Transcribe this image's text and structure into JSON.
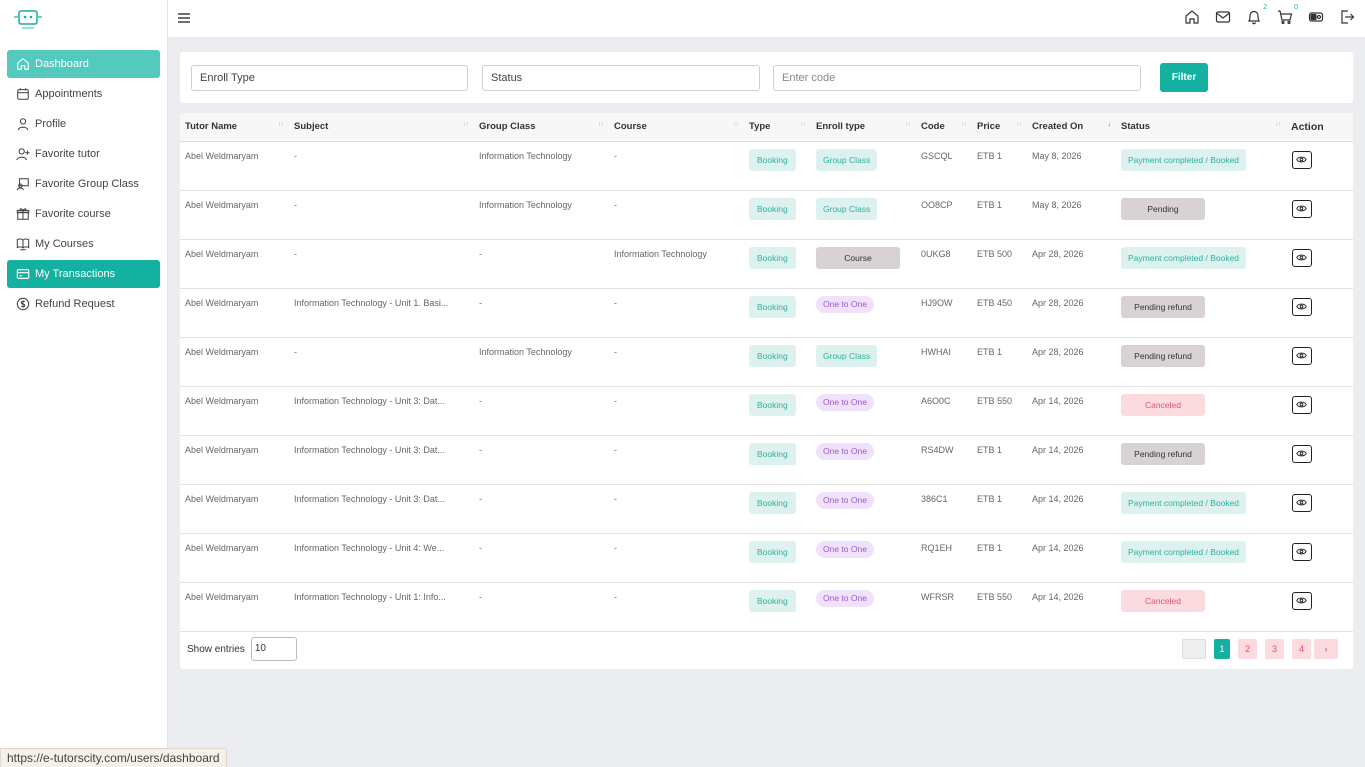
{
  "sidebar": {
    "items": [
      {
        "label": "Dashboard",
        "icon": "home-icon"
      },
      {
        "label": "Appointments",
        "icon": "calendar-icon"
      },
      {
        "label": "Profile",
        "icon": "user-icon"
      },
      {
        "label": "Favorite tutor",
        "icon": "user-plus-icon"
      },
      {
        "label": "Favorite Group Class",
        "icon": "group-class-icon"
      },
      {
        "label": "Favorite course",
        "icon": "gift-icon"
      },
      {
        "label": "My Courses",
        "icon": "book-icon"
      },
      {
        "label": "My Transactions",
        "icon": "credit-card-icon"
      },
      {
        "label": "Refund Request",
        "icon": "dollar-icon"
      }
    ]
  },
  "topbar": {
    "notification_count": "2",
    "cart_count": "0"
  },
  "filters": {
    "enroll_type": "Enroll Type",
    "status": "Status",
    "code_placeholder": "Enter code",
    "button": "Filter"
  },
  "table": {
    "headers": [
      "Tutor Name",
      "Subject",
      "Group Class",
      "Course",
      "Type",
      "Enroll type",
      "Code",
      "Price",
      "Created On",
      "Status",
      "Action"
    ],
    "rows": [
      {
        "tutor": "Abel Weldmaryam",
        "subject": "-",
        "group_class": "Information Technology",
        "course": "-",
        "type": "Booking",
        "enroll": "Group Class",
        "code": "GSCQL",
        "price": "ETB 1",
        "created": "May 8, 2026",
        "status": "Payment completed / Booked"
      },
      {
        "tutor": "Abel Weldmaryam",
        "subject": "-",
        "group_class": "Information Technology",
        "course": "-",
        "type": "Booking",
        "enroll": "Group Class",
        "code": "OO8CP",
        "price": "ETB 1",
        "created": "May 8, 2026",
        "status": "Pending"
      },
      {
        "tutor": "Abel Weldmaryam",
        "subject": "-",
        "group_class": "-",
        "course": "Information Technology",
        "type": "Booking",
        "enroll": "Course",
        "code": "0UKG8",
        "price": "ETB 500",
        "created": "Apr 28, 2026",
        "status": "Payment completed / Booked"
      },
      {
        "tutor": "Abel Weldmaryam",
        "subject": "Information Technology - Unit 1. Basi...",
        "group_class": "-",
        "course": "-",
        "type": "Booking",
        "enroll": "One to One",
        "code": "HJ9OW",
        "price": "ETB 450",
        "created": "Apr 28, 2026",
        "status": "Pending refund"
      },
      {
        "tutor": "Abel Weldmaryam",
        "subject": "-",
        "group_class": "Information Technology",
        "course": "-",
        "type": "Booking",
        "enroll": "Group Class",
        "code": "HWHAI",
        "price": "ETB 1",
        "created": "Apr 28, 2026",
        "status": "Pending refund"
      },
      {
        "tutor": "Abel Weldmaryam",
        "subject": "Information Technology - Unit 3: Dat...",
        "group_class": "-",
        "course": "-",
        "type": "Booking",
        "enroll": "One to One",
        "code": "A6O0C",
        "price": "ETB 550",
        "created": "Apr 14, 2026",
        "status": "Canceled"
      },
      {
        "tutor": "Abel Weldmaryam",
        "subject": "Information Technology - Unit 3: Dat...",
        "group_class": "-",
        "course": "-",
        "type": "Booking",
        "enroll": "One to One",
        "code": "RS4DW",
        "price": "ETB 1",
        "created": "Apr 14, 2026",
        "status": "Pending refund"
      },
      {
        "tutor": "Abel Weldmaryam",
        "subject": "Information Technology - Unit 3: Dat...",
        "group_class": "-",
        "course": "-",
        "type": "Booking",
        "enroll": "One to One",
        "code": "386C1",
        "price": "ETB 1",
        "created": "Apr 14, 2026",
        "status": "Payment completed / Booked"
      },
      {
        "tutor": "Abel Weldmaryam",
        "subject": "Information Technology - Unit 4: We...",
        "group_class": "-",
        "course": "-",
        "type": "Booking",
        "enroll": "One to One",
        "code": "RQ1EH",
        "price": "ETB 1",
        "created": "Apr 14, 2026",
        "status": "Payment completed / Booked"
      },
      {
        "tutor": "Abel Weldmaryam",
        "subject": "Information Technology - Unit 1: Info...",
        "group_class": "-",
        "course": "-",
        "type": "Booking",
        "enroll": "One to One",
        "code": "WFRSR",
        "price": "ETB 550",
        "created": "Apr 14, 2026",
        "status": "Canceled"
      }
    ]
  },
  "footer": {
    "show_entries_label": "Show entries",
    "entries_value": "10",
    "pages": [
      "1",
      "2",
      "3",
      "4"
    ],
    "next": "›"
  },
  "status_url": "https://e-tutorscity.com/users/dashboard"
}
